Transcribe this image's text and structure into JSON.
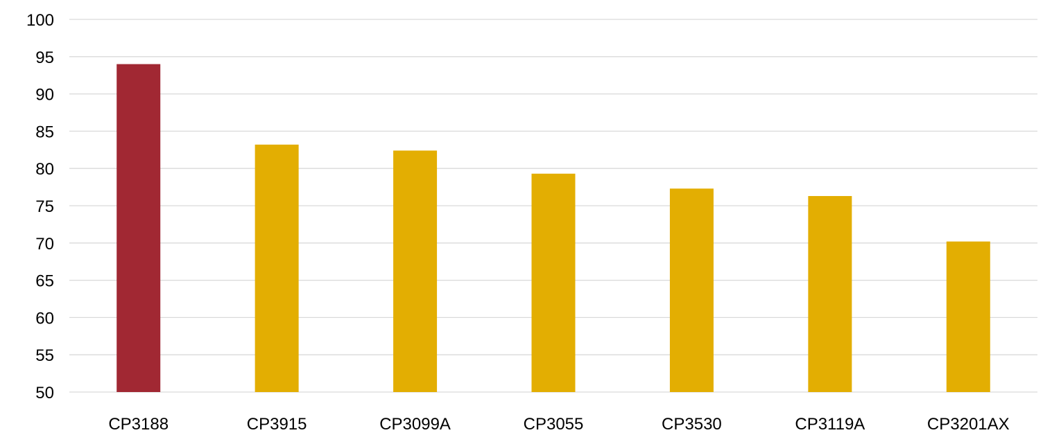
{
  "chart_data": {
    "type": "bar",
    "title": "",
    "xlabel": "",
    "ylabel": "",
    "categories": [
      "CP3188",
      "CP3915",
      "CP3099A",
      "CP3055",
      "CP3530",
      "CP3119A",
      "CP3201AX"
    ],
    "values": [
      94.0,
      83.2,
      82.4,
      79.3,
      77.3,
      76.3,
      70.2
    ],
    "bar_colors": [
      "#a12833",
      "#e3ae02",
      "#e3ae02",
      "#e3ae02",
      "#e3ae02",
      "#e3ae02",
      "#e3ae02"
    ],
    "ylim": [
      50,
      100
    ],
    "y_ticks": [
      50,
      55,
      60,
      65,
      70,
      75,
      80,
      85,
      90,
      95,
      100
    ],
    "grid": true,
    "legend": "none",
    "highlight_color": "#a12833",
    "default_color": "#e3ae02",
    "grid_color": "#d9d9d9"
  }
}
